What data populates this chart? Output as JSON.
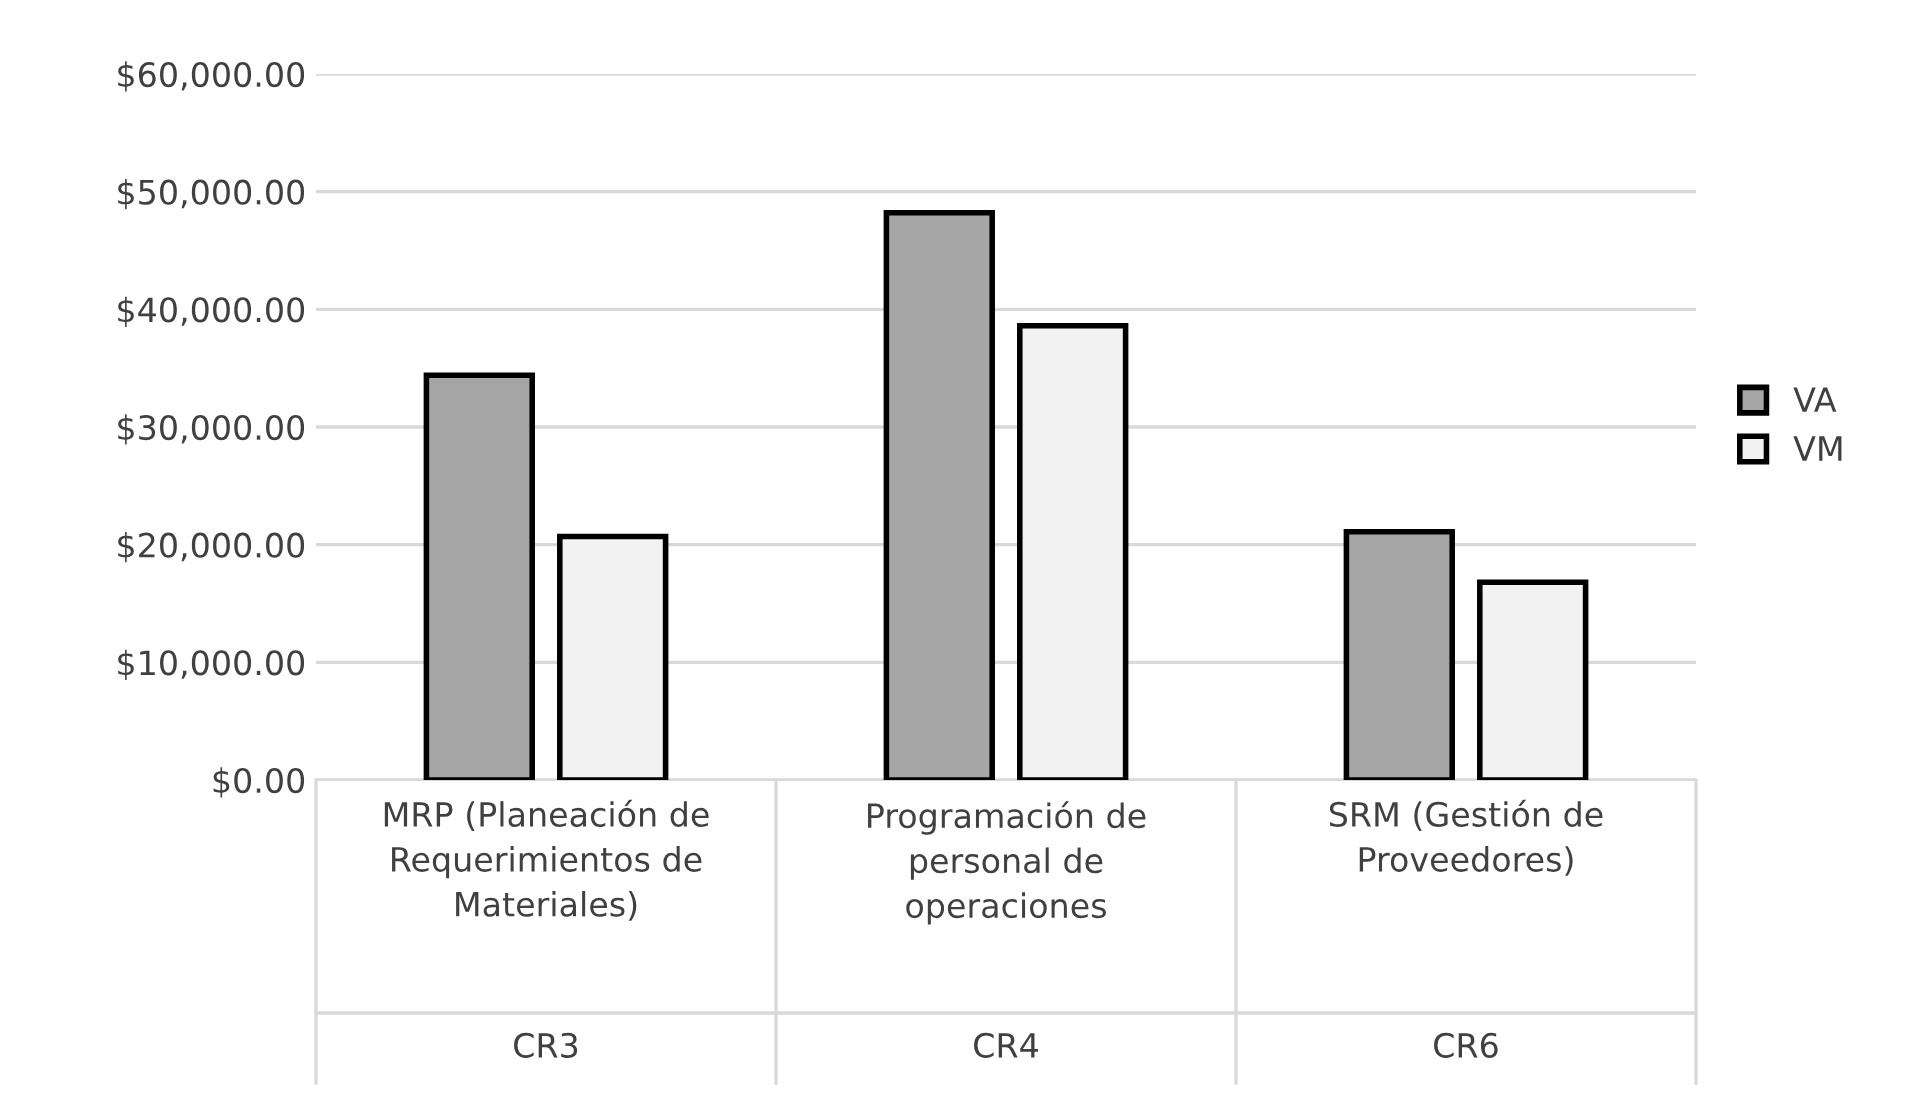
{
  "chart_data": {
    "type": "bar",
    "categories": [
      "MRP (Planeación de\nRequerimientos de\nMateriales)",
      "Programación de\npersonal de\noperaciones",
      "SRM (Gestión de\nProveedores)"
    ],
    "series": [
      {
        "name": "VA",
        "color": "#a5a5a5",
        "values": [
          34400,
          48200,
          21100
        ]
      },
      {
        "name": "VM",
        "color": "#f2f2f2",
        "values": [
          20700,
          38600,
          16800
        ]
      }
    ],
    "annotations": [
      "CR3",
      "CR4",
      "CR6"
    ],
    "ylim": [
      0,
      60000
    ],
    "yticks": [
      {
        "value": 0,
        "label": "$0.00"
      },
      {
        "value": 10000,
        "label": "$10,000.00"
      },
      {
        "value": 20000,
        "label": "$20,000.00"
      },
      {
        "value": 30000,
        "label": "$30,000.00"
      },
      {
        "value": 40000,
        "label": "$40,000.00"
      },
      {
        "value": 50000,
        "label": "$50,000.00"
      },
      {
        "value": 60000,
        "label": "$60,000.00"
      }
    ],
    "grid": "y",
    "legend": "right"
  }
}
